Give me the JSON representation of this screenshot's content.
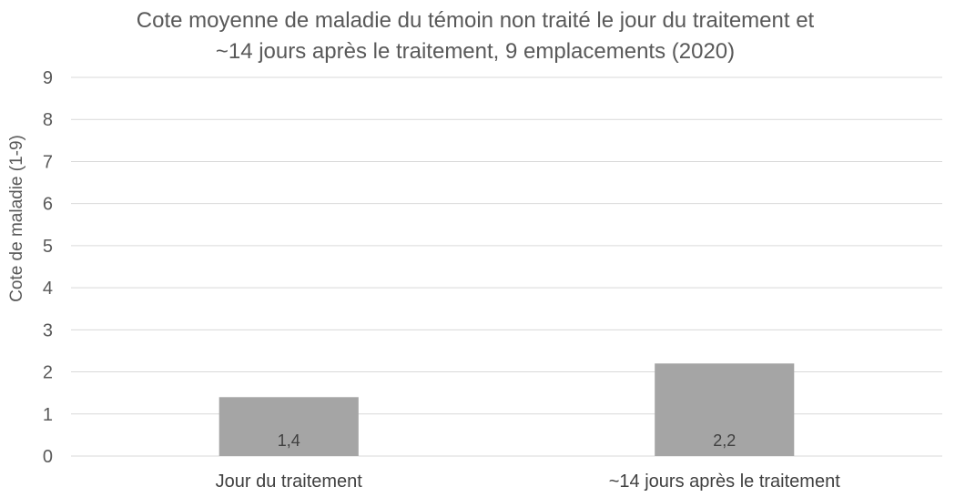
{
  "chart_data": {
    "type": "bar",
    "title_lines": [
      "Cote moyenne de maladie du témoin non traité le jour du traitement et",
      "~14 jours après le traitement, 9 emplacements (2020)"
    ],
    "ylabel": "Cote de maladie (1-9)",
    "xlabel": "",
    "categories": [
      "Jour du traitement",
      "~14 jours après le traitement"
    ],
    "values": [
      1.4,
      2.2
    ],
    "data_labels": [
      "1,4",
      "2,2"
    ],
    "ylim": [
      0,
      9
    ],
    "yticks": [
      0,
      1,
      2,
      3,
      4,
      5,
      6,
      7,
      8,
      9
    ],
    "grid": true,
    "legend": "none",
    "bar_color": "#a5a5a5",
    "grid_color": "#d9d9d9"
  }
}
